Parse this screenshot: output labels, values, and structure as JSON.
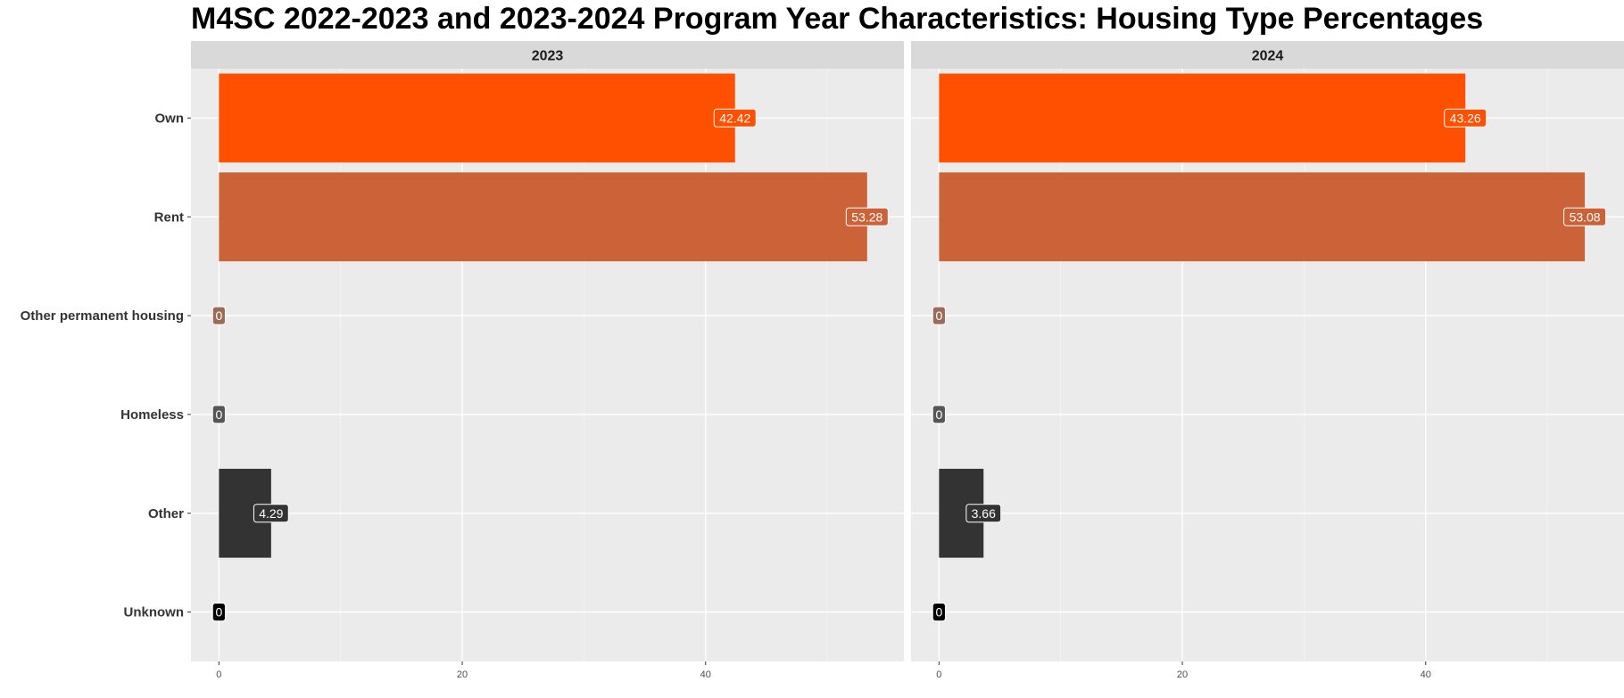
{
  "chart_data": {
    "type": "bar",
    "orientation": "horizontal",
    "title": "M4SC 2022-2023 and 2023-2024 Program Year Characteristics: Housing Type Percentages",
    "xlabel": "",
    "ylabel": "",
    "categories": [
      "Own",
      "Rent",
      "Other permanent housing",
      "Homeless",
      "Other",
      "Unknown"
    ],
    "category_colors": [
      "#ff4f00",
      "#cc6338",
      "#9a6b58",
      "#565656",
      "#333333",
      "#000000"
    ],
    "xlim": [
      -2.3,
      56.3
    ],
    "x_ticks": [
      0,
      20,
      40
    ],
    "grid": true,
    "legend": "none",
    "panels": [
      {
        "strip": "2023",
        "values": [
          42.42,
          53.28,
          0,
          0,
          4.29,
          0
        ],
        "labels": [
          "42.42",
          "53.28",
          "0",
          "0",
          "4.29",
          "0"
        ]
      },
      {
        "strip": "2024",
        "values": [
          43.26,
          53.08,
          0,
          0,
          3.66,
          0
        ],
        "labels": [
          "43.26",
          "53.08",
          "0",
          "0",
          "3.66",
          "0"
        ]
      }
    ]
  }
}
